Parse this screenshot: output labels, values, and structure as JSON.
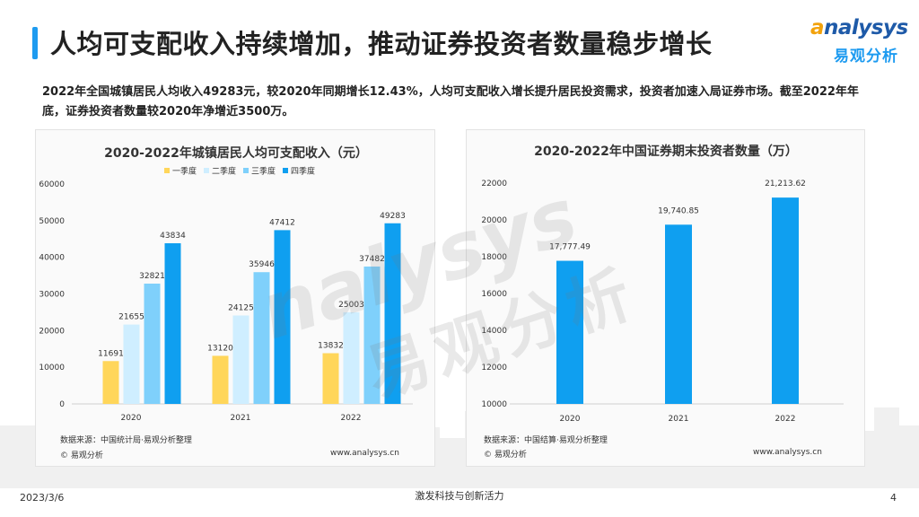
{
  "header": {
    "title": "人均可支配收入持续增加，推动证券投资者数量稳步增长",
    "logo_text": "nalysys",
    "logo_cn": "易观分析"
  },
  "intro": "2022年全国城镇居民人均收入49283元，较2020年同期增长12.43%，人均可支配收入增长提升居民投资需求，投资者加速入局证券市场。截至2022年年底，证券投资者数量较2020年净增近3500万。",
  "watermark": {
    "word": "nalysys",
    "cn": "易观分析"
  },
  "chart_data": [
    {
      "type": "bar",
      "title": "2020-2022年城镇居民人均可支配收入（元）",
      "categories": [
        "2020",
        "2021",
        "2022"
      ],
      "series": [
        {
          "name": "一季度",
          "values": [
            11691,
            13120,
            13832
          ],
          "color": "#ffd65a"
        },
        {
          "name": "二季度",
          "values": [
            21655,
            24125,
            25003
          ],
          "color": "#cfeeff"
        },
        {
          "name": "三季度",
          "values": [
            32821,
            35946,
            37482
          ],
          "color": "#7fd0fb"
        },
        {
          "name": "四季度",
          "values": [
            43834,
            47412,
            49283
          ],
          "color": "#0f9ff0"
        }
      ],
      "ylim": [
        0,
        60000
      ],
      "yticks": [
        0,
        10000,
        20000,
        30000,
        40000,
        50000,
        60000
      ],
      "legend": "top",
      "grid": false,
      "source": "数据来源：中国统计局·易观分析整理",
      "copyright": "© 易观分析",
      "url": "www.analysys.cn"
    },
    {
      "type": "bar",
      "title": "2020-2022年中国证券期末投资者数量（万）",
      "categories": [
        "2020",
        "2021",
        "2022"
      ],
      "values": [
        17777.49,
        19740.85,
        21213.62
      ],
      "labels": [
        "17,777.49",
        "19,740.85",
        "21,213.62"
      ],
      "color": "#0f9ff0",
      "ylim": [
        10000,
        22000
      ],
      "yticks": [
        10000,
        12000,
        14000,
        16000,
        18000,
        20000,
        22000
      ],
      "grid": false,
      "source": "数据来源：中国结算·易观分析整理",
      "copyright": "© 易观分析",
      "url": "www.analysys.cn"
    }
  ],
  "footer": {
    "date": "2023/3/6",
    "slogan": "激发科技与创新活力",
    "page": "4"
  }
}
